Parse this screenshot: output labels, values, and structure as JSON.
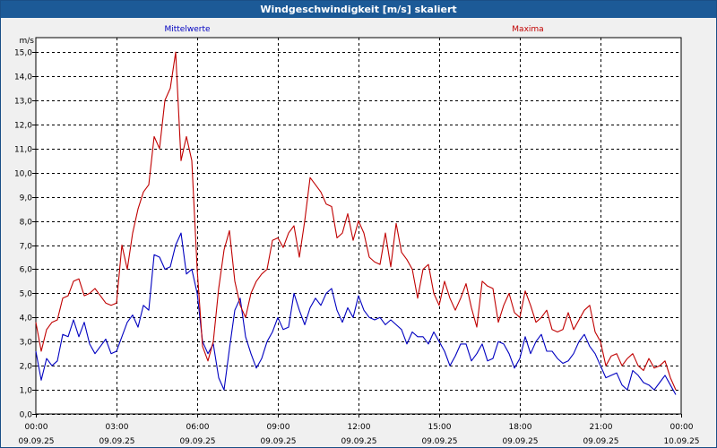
{
  "chart_data": {
    "type": "line",
    "title": "Windgeschwindigkeit [m/s] skaliert",
    "ylabel": "m/s",
    "ylim": [
      0,
      15.6
    ],
    "xlim": [
      0,
      24
    ],
    "grid": true,
    "legend": [
      "Mittelwerte",
      "Maxima"
    ],
    "y_ticks": [
      "0,0",
      "1,0",
      "2,0",
      "3,0",
      "4,0",
      "5,0",
      "6,0",
      "7,0",
      "8,0",
      "9,0",
      "10,0",
      "11,0",
      "12,0",
      "13,0",
      "14,0",
      "15,0"
    ],
    "x_ticks": [
      {
        "time": "00:00",
        "date": "09.09.25"
      },
      {
        "time": "03:00",
        "date": "09.09.25"
      },
      {
        "time": "06:00",
        "date": "09.09.25"
      },
      {
        "time": "09:00",
        "date": "09.09.25"
      },
      {
        "time": "12:00",
        "date": "09.09.25"
      },
      {
        "time": "15:00",
        "date": "09.09.25"
      },
      {
        "time": "18:00",
        "date": "09.09.25"
      },
      {
        "time": "21:00",
        "date": "09.09.25"
      },
      {
        "time": "00:00",
        "date": "10.09.25"
      }
    ],
    "series": [
      {
        "name": "Mittelwerte",
        "color": "#0000c0",
        "x": [
          0,
          0.2,
          0.4,
          0.6,
          0.8,
          1.0,
          1.2,
          1.4,
          1.6,
          1.8,
          2.0,
          2.2,
          2.4,
          2.6,
          2.8,
          3.0,
          3.2,
          3.4,
          3.6,
          3.8,
          4.0,
          4.2,
          4.4,
          4.6,
          4.8,
          5.0,
          5.2,
          5.4,
          5.6,
          5.8,
          6.0,
          6.2,
          6.4,
          6.6,
          6.8,
          7.0,
          7.2,
          7.4,
          7.6,
          7.8,
          8.0,
          8.2,
          8.4,
          8.6,
          8.8,
          9.0,
          9.2,
          9.4,
          9.6,
          9.8,
          10.0,
          10.2,
          10.4,
          10.6,
          10.8,
          11.0,
          11.2,
          11.4,
          11.6,
          11.8,
          12.0,
          12.2,
          12.4,
          12.6,
          12.8,
          13.0,
          13.2,
          13.4,
          13.6,
          13.8,
          14.0,
          14.2,
          14.4,
          14.6,
          14.8,
          15.0,
          15.2,
          15.4,
          15.6,
          15.8,
          16.0,
          16.2,
          16.4,
          16.6,
          16.8,
          17.0,
          17.2,
          17.4,
          17.6,
          17.8,
          18.0,
          18.2,
          18.4,
          18.6,
          18.8,
          19.0,
          19.2,
          19.4,
          19.6,
          19.8,
          20.0,
          20.2,
          20.4,
          20.6,
          20.8,
          21.0,
          21.2,
          21.4,
          21.6,
          21.8,
          22.0,
          22.2,
          22.4,
          22.6,
          22.8,
          23.0,
          23.2,
          23.4,
          23.6,
          23.8
        ],
        "values": [
          2.6,
          1.4,
          2.3,
          2.0,
          2.2,
          3.3,
          3.2,
          3.9,
          3.2,
          3.8,
          2.9,
          2.5,
          2.8,
          3.1,
          2.5,
          2.6,
          3.2,
          3.8,
          4.1,
          3.6,
          4.5,
          4.3,
          6.6,
          6.5,
          6.0,
          6.1,
          7.0,
          7.5,
          5.8,
          6.0,
          5.0,
          3.0,
          2.5,
          2.9,
          1.5,
          1.0,
          2.7,
          4.3,
          4.8,
          3.2,
          2.5,
          1.9,
          2.3,
          3.0,
          3.4,
          4.0,
          3.5,
          3.6,
          5.0,
          4.3,
          3.7,
          4.4,
          4.8,
          4.5,
          5.0,
          5.2,
          4.3,
          3.8,
          4.4,
          4.0,
          4.9,
          4.3,
          4.0,
          3.9,
          4.0,
          3.7,
          3.9,
          3.7,
          3.5,
          2.9,
          3.4,
          3.2,
          3.2,
          2.9,
          3.4,
          3.0,
          2.6,
          2.0,
          2.4,
          2.9,
          2.9,
          2.2,
          2.5,
          2.9,
          2.2,
          2.3,
          3.0,
          2.9,
          2.5,
          1.9,
          2.3,
          3.2,
          2.5,
          3.0,
          3.3,
          2.6,
          2.6,
          2.3,
          2.1,
          2.2,
          2.5,
          3.0,
          3.3,
          2.8,
          2.5,
          2.0,
          1.5,
          1.6,
          1.7,
          1.2,
          1.0,
          1.8,
          1.6,
          1.3,
          1.2,
          1.0,
          1.3,
          1.6,
          1.2,
          0.8
        ]
      },
      {
        "name": "Maxima",
        "color": "#c00000",
        "x": [
          0,
          0.2,
          0.4,
          0.6,
          0.8,
          1.0,
          1.2,
          1.4,
          1.6,
          1.8,
          2.0,
          2.2,
          2.4,
          2.6,
          2.8,
          3.0,
          3.2,
          3.4,
          3.6,
          3.8,
          4.0,
          4.2,
          4.4,
          4.6,
          4.8,
          5.0,
          5.2,
          5.4,
          5.6,
          5.8,
          6.0,
          6.2,
          6.4,
          6.6,
          6.8,
          7.0,
          7.2,
          7.4,
          7.6,
          7.8,
          8.0,
          8.2,
          8.4,
          8.6,
          8.8,
          9.0,
          9.2,
          9.4,
          9.6,
          9.8,
          10.0,
          10.2,
          10.4,
          10.6,
          10.8,
          11.0,
          11.2,
          11.4,
          11.6,
          11.8,
          12.0,
          12.2,
          12.4,
          12.6,
          12.8,
          13.0,
          13.2,
          13.4,
          13.6,
          13.8,
          14.0,
          14.2,
          14.4,
          14.6,
          14.8,
          15.0,
          15.2,
          15.4,
          15.6,
          15.8,
          16.0,
          16.2,
          16.4,
          16.6,
          16.8,
          17.0,
          17.2,
          17.4,
          17.6,
          17.8,
          18.0,
          18.2,
          18.4,
          18.6,
          18.8,
          19.0,
          19.2,
          19.4,
          19.6,
          19.8,
          20.0,
          20.2,
          20.4,
          20.6,
          20.8,
          21.0,
          21.2,
          21.4,
          21.6,
          21.8,
          22.0,
          22.2,
          22.4,
          22.6,
          22.8,
          23.0,
          23.2,
          23.4,
          23.6,
          23.8
        ],
        "values": [
          3.8,
          2.6,
          3.5,
          3.8,
          3.9,
          4.8,
          4.9,
          5.5,
          5.6,
          4.9,
          5.0,
          5.2,
          4.9,
          4.6,
          4.5,
          4.6,
          7.0,
          6.0,
          7.5,
          8.5,
          9.2,
          9.5,
          11.5,
          11.0,
          13.0,
          13.5,
          15.0,
          10.5,
          11.5,
          10.5,
          6.0,
          2.8,
          2.2,
          3.0,
          5.2,
          6.8,
          7.6,
          5.5,
          4.5,
          4.0,
          5.0,
          5.5,
          5.8,
          6.0,
          7.2,
          7.3,
          6.9,
          7.5,
          7.8,
          6.5,
          8.0,
          9.8,
          9.5,
          9.2,
          8.7,
          8.6,
          7.3,
          7.5,
          8.3,
          7.2,
          8.0,
          7.5,
          6.5,
          6.3,
          6.2,
          7.5,
          6.1,
          7.9,
          6.7,
          6.4,
          6.0,
          4.8,
          6.0,
          6.2,
          5.0,
          4.5,
          5.5,
          4.8,
          4.3,
          4.8,
          5.4,
          4.4,
          3.6,
          5.5,
          5.3,
          5.2,
          3.8,
          4.5,
          5.0,
          4.2,
          4.0,
          5.1,
          4.5,
          3.8,
          4.0,
          4.3,
          3.5,
          3.4,
          3.5,
          4.2,
          3.5,
          3.9,
          4.3,
          4.5,
          3.4,
          3.0,
          2.0,
          2.4,
          2.5,
          2.0,
          2.3,
          2.5,
          2.0,
          1.8,
          2.3,
          1.9,
          2.0,
          2.2,
          1.5,
          1.0
        ]
      }
    ]
  }
}
